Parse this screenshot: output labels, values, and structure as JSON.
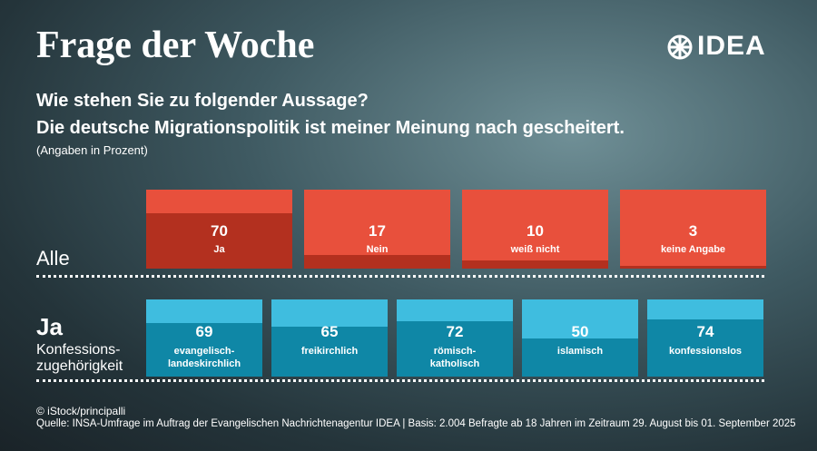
{
  "header": {
    "title": "Frage der Woche",
    "logo": "IDEA"
  },
  "question": [
    "Wie stehen Sie zu folgender Aussage?",
    "Die deutsche Migrationspolitik ist meiner Meinung nach gescheitert."
  ],
  "note": "(Angaben in Prozent)",
  "chart_data": [
    {
      "type": "bar",
      "title": "Alle",
      "categories": [
        "Ja",
        "Nein",
        "weiß nicht",
        "keine Angabe"
      ],
      "values": [
        70,
        17,
        10,
        3
      ],
      "ylim": [
        0,
        100
      ],
      "color": "#b3301f",
      "background": "#e8503c"
    },
    {
      "type": "bar",
      "title": "Ja",
      "subtitle": [
        "Konfessions-",
        "zugehörigkeit"
      ],
      "categories": [
        "evangelisch-landeskirchlich",
        "freikirchlich",
        "römisch-katholisch",
        "islamisch",
        "konfessionslos"
      ],
      "values": [
        69,
        65,
        72,
        50,
        74
      ],
      "ylim": [
        0,
        100
      ],
      "color": "#0f87a6",
      "background": "#3fbddf"
    }
  ],
  "footer": {
    "credit": "© iStock/principalli",
    "source": "Quelle: INSA-Umfrage im Auftrag der Evangelischen Nachrichtenagentur IDEA | Basis: 2.004 Befragte ab 18 Jahren im Zeitraum 29. August bis 01. September  2025"
  }
}
